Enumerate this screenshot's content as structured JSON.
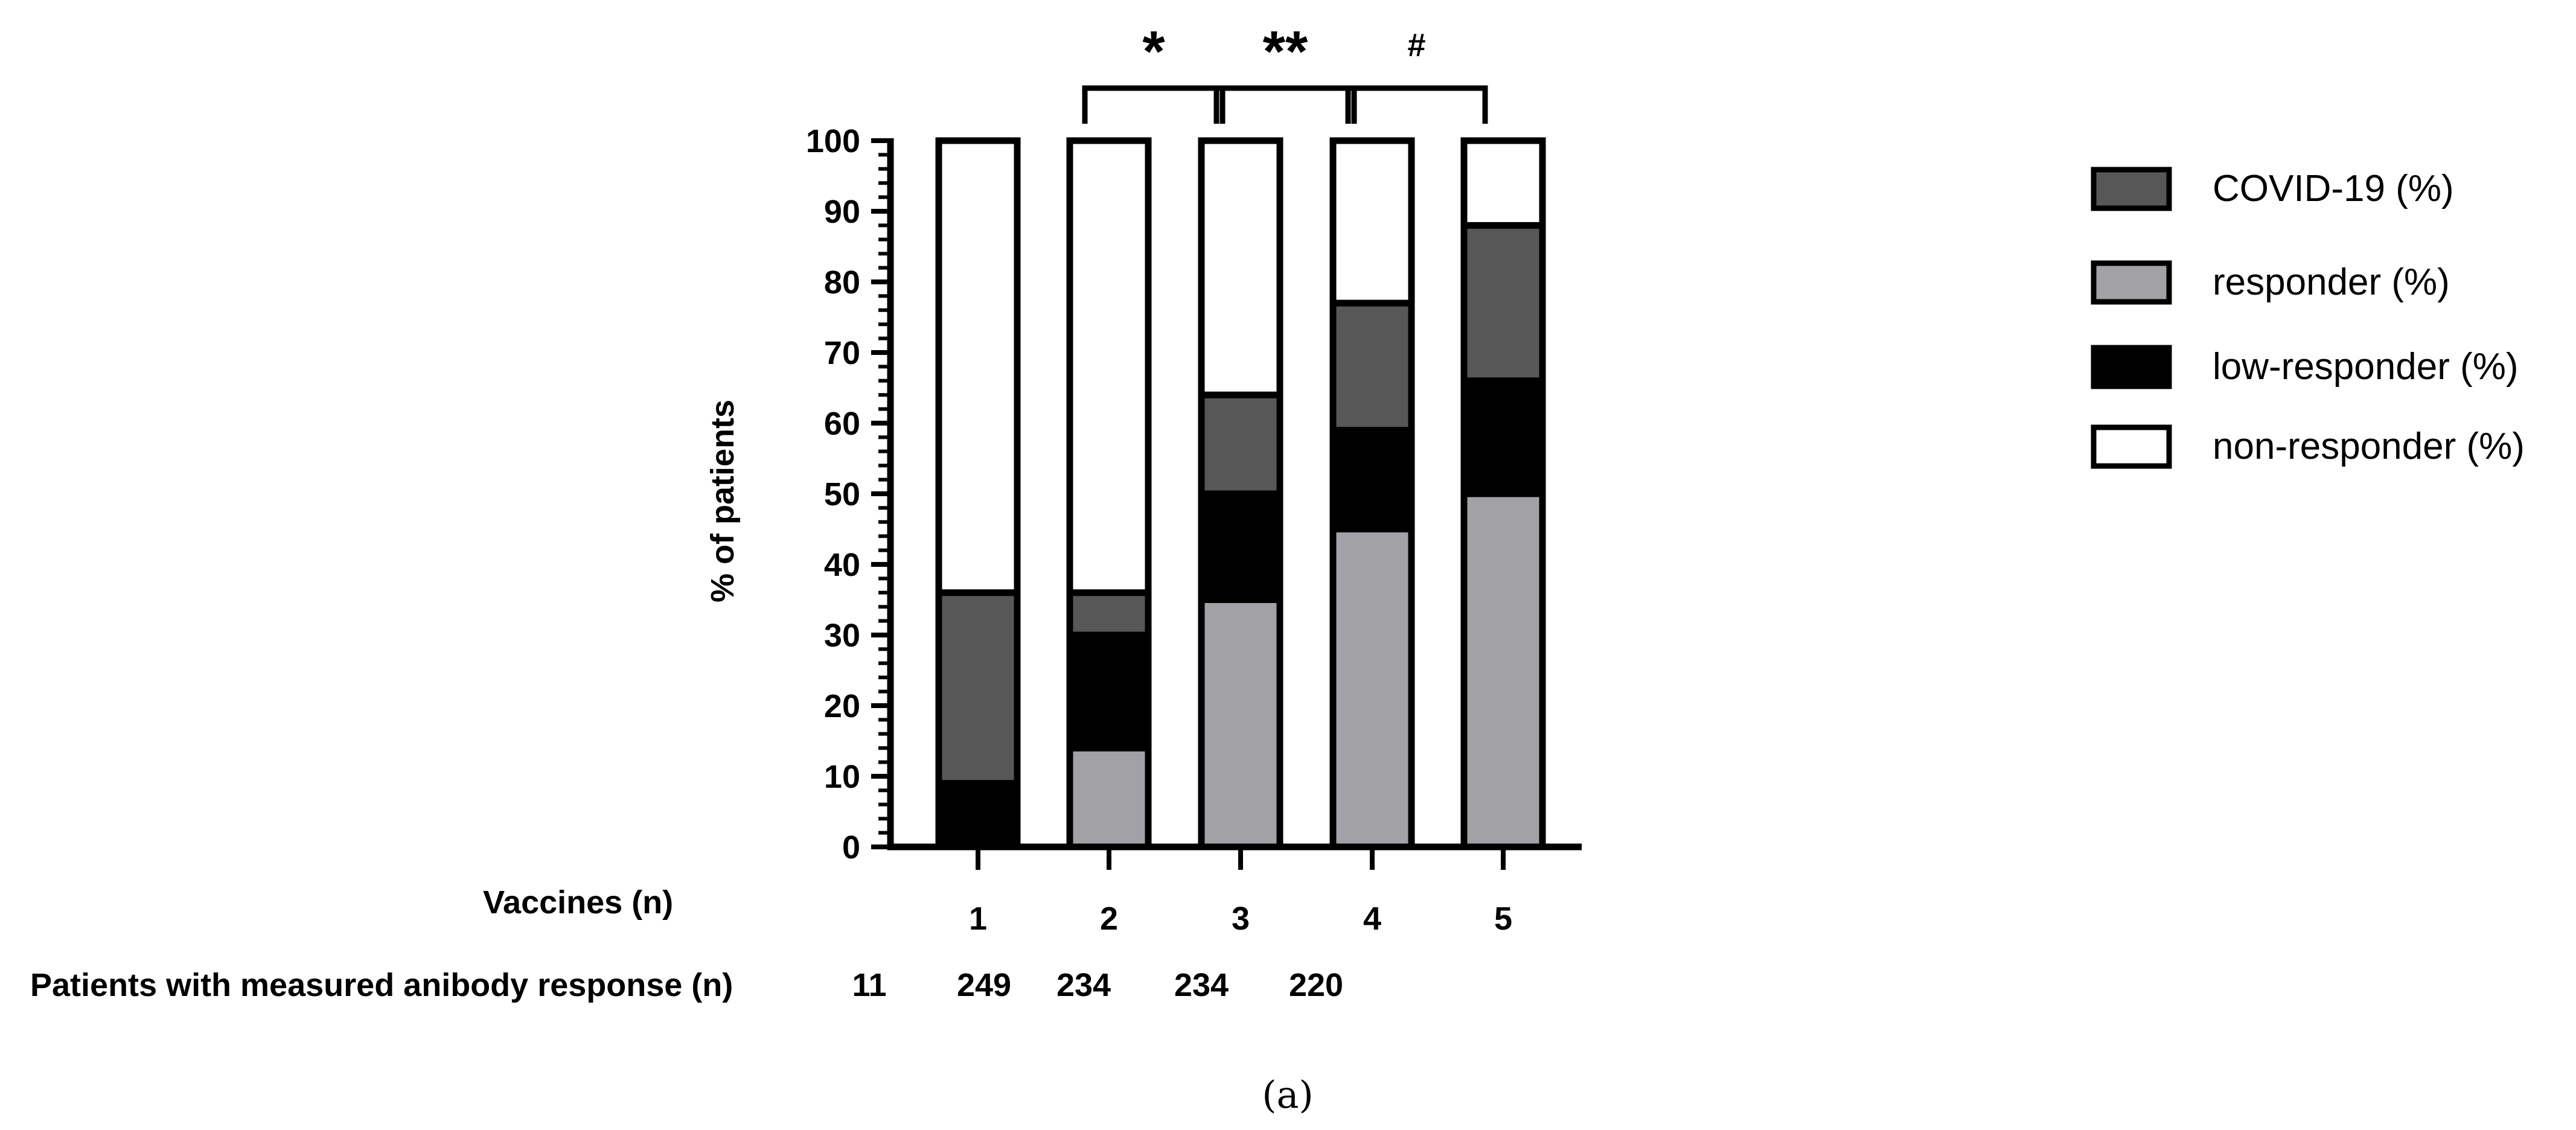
{
  "chart_data": {
    "type": "bar",
    "stacked": true,
    "ylabel": "% of patients",
    "ylim": [
      0,
      100
    ],
    "yticks": [
      "0",
      "10",
      "20",
      "30",
      "40",
      "50",
      "60",
      "70",
      "80",
      "90",
      "100"
    ],
    "categories": [
      "1",
      "2",
      "3",
      "4",
      "5"
    ],
    "series": [
      {
        "name": "responder (%)",
        "color": "#a2a2a6",
        "values": [
          0,
          14,
          35,
          45,
          50
        ]
      },
      {
        "name": "low-responder (%)",
        "color": "#000000",
        "values": [
          9,
          16,
          15,
          14,
          16
        ]
      },
      {
        "name": "COVID-19 (%)",
        "color": "#575757",
        "values": [
          27,
          6,
          14,
          18,
          22
        ]
      },
      {
        "name": "non-responder (%)",
        "color": "#ffffff",
        "values": [
          64,
          64,
          36,
          23,
          12
        ]
      }
    ],
    "legend_order": [
      "COVID-19 (%)",
      "responder (%)",
      "low-responder (%)",
      "non-responder (%)"
    ],
    "legend_position": "right",
    "significance": [
      {
        "from": 1,
        "to": 2,
        "label": "*"
      },
      {
        "from": 2,
        "to": 3,
        "label": "**"
      },
      {
        "from": 3,
        "to": 4,
        "label": "#"
      }
    ],
    "row_labels": {
      "vaccines": "Vaccines (n)",
      "patients": "Patients with measured anibody response (n)"
    },
    "patient_counts": [
      "11",
      "249",
      "234",
      "234",
      "220"
    ]
  },
  "caption": "(a)"
}
